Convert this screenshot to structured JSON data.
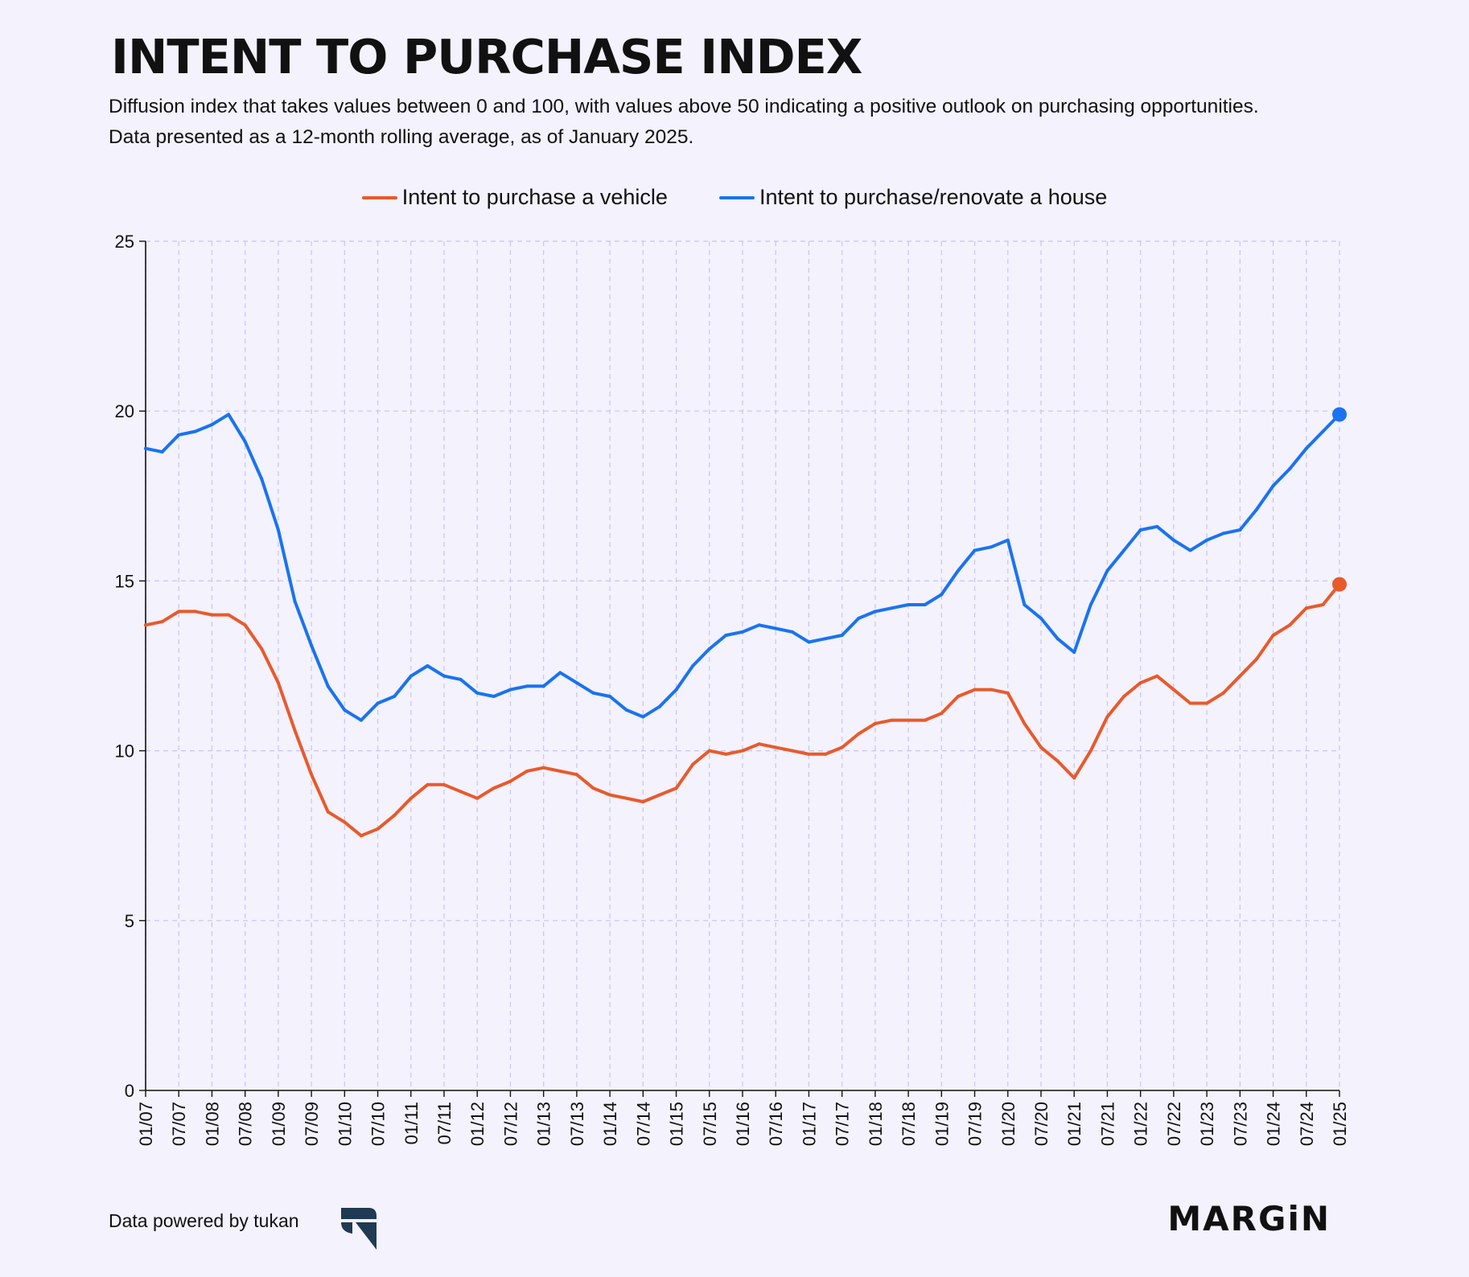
{
  "title": "INTENT TO PURCHASE INDEX",
  "subtitle_line1": "Diffusion index that takes values between 0 and 100, with values above 50 indicating a positive outlook on purchasing opportunities.",
  "subtitle_line2": "Data presented as a 12-month rolling average, as of January 2025.",
  "footer": {
    "credit": "Data powered by tukan",
    "brand": "MARGiN"
  },
  "colors": {
    "vehicle": "#e85a2c",
    "house": "#1a73f0",
    "grid": "#c8c6ef",
    "background": "#f3f2fd"
  },
  "chart_data": {
    "type": "line",
    "title": "INTENT TO PURCHASE INDEX",
    "xlabel": "",
    "ylabel": "",
    "ylim": [
      0,
      25
    ],
    "yticks": [
      0,
      5,
      10,
      15,
      20,
      25
    ],
    "x_tick_labels": [
      "01/07",
      "07/07",
      "01/08",
      "07/08",
      "01/09",
      "07/09",
      "01/10",
      "07/10",
      "01/11",
      "07/11",
      "01/12",
      "07/12",
      "01/13",
      "07/13",
      "01/14",
      "07/14",
      "01/15",
      "07/15",
      "01/16",
      "07/16",
      "01/17",
      "07/17",
      "01/18",
      "07/18",
      "01/19",
      "07/19",
      "01/20",
      "07/20",
      "01/21",
      "07/21",
      "01/22",
      "07/22",
      "01/23",
      "07/23",
      "01/24",
      "07/24",
      "01/25"
    ],
    "grid": true,
    "legend_position": "top-center",
    "x": [
      "01/07",
      "04/07",
      "07/07",
      "10/07",
      "01/08",
      "04/08",
      "07/08",
      "10/08",
      "01/09",
      "04/09",
      "07/09",
      "10/09",
      "01/10",
      "04/10",
      "07/10",
      "10/10",
      "01/11",
      "04/11",
      "07/11",
      "10/11",
      "01/12",
      "04/12",
      "07/12",
      "10/12",
      "01/13",
      "04/13",
      "07/13",
      "10/13",
      "01/14",
      "04/14",
      "07/14",
      "10/14",
      "01/15",
      "04/15",
      "07/15",
      "10/15",
      "01/16",
      "04/16",
      "07/16",
      "10/16",
      "01/17",
      "04/17",
      "07/17",
      "10/17",
      "01/18",
      "04/18",
      "07/18",
      "10/18",
      "01/19",
      "04/19",
      "07/19",
      "10/19",
      "01/20",
      "04/20",
      "07/20",
      "10/20",
      "01/21",
      "04/21",
      "07/21",
      "10/21",
      "01/22",
      "04/22",
      "07/22",
      "10/22",
      "01/23",
      "04/23",
      "07/23",
      "10/23",
      "01/24",
      "04/24",
      "07/24",
      "10/24",
      "01/25"
    ],
    "series": [
      {
        "name": "Intent to purchase a vehicle",
        "color": "#e85a2c",
        "values": [
          13.7,
          13.8,
          14.1,
          14.1,
          14.0,
          14.0,
          13.7,
          13.0,
          12.0,
          10.6,
          9.3,
          8.2,
          7.9,
          7.5,
          7.7,
          8.1,
          8.6,
          9.0,
          9.0,
          8.8,
          8.6,
          8.9,
          9.1,
          9.4,
          9.5,
          9.4,
          9.3,
          8.9,
          8.7,
          8.6,
          8.5,
          8.7,
          8.9,
          9.6,
          10.0,
          9.9,
          10.0,
          10.2,
          10.1,
          10.0,
          9.9,
          9.9,
          10.1,
          10.5,
          10.8,
          10.9,
          10.9,
          10.9,
          11.1,
          11.6,
          11.8,
          11.8,
          11.7,
          10.8,
          10.1,
          9.7,
          9.2,
          10.0,
          11.0,
          11.6,
          12.0,
          12.2,
          11.8,
          11.4,
          11.4,
          11.7,
          12.2,
          12.7,
          13.4,
          13.7,
          14.2,
          14.3,
          14.9
        ]
      },
      {
        "name": "Intent to purchase/renovate a house",
        "color": "#1a73f0",
        "values": [
          18.9,
          18.8,
          19.3,
          19.4,
          19.6,
          19.9,
          19.1,
          18.0,
          16.5,
          14.4,
          13.1,
          11.9,
          11.2,
          10.9,
          11.4,
          11.6,
          12.2,
          12.5,
          12.2,
          12.1,
          11.7,
          11.6,
          11.8,
          11.9,
          11.9,
          12.3,
          12.0,
          11.7,
          11.6,
          11.2,
          11.0,
          11.3,
          11.8,
          12.5,
          13.0,
          13.4,
          13.5,
          13.7,
          13.6,
          13.5,
          13.2,
          13.3,
          13.4,
          13.9,
          14.1,
          14.2,
          14.3,
          14.3,
          14.6,
          15.3,
          15.9,
          16.0,
          16.2,
          14.3,
          13.9,
          13.3,
          12.9,
          14.3,
          15.3,
          15.9,
          16.5,
          16.6,
          16.2,
          15.9,
          16.2,
          16.4,
          16.5,
          17.1,
          17.8,
          18.3,
          18.9,
          19.4,
          19.9
        ]
      }
    ]
  }
}
